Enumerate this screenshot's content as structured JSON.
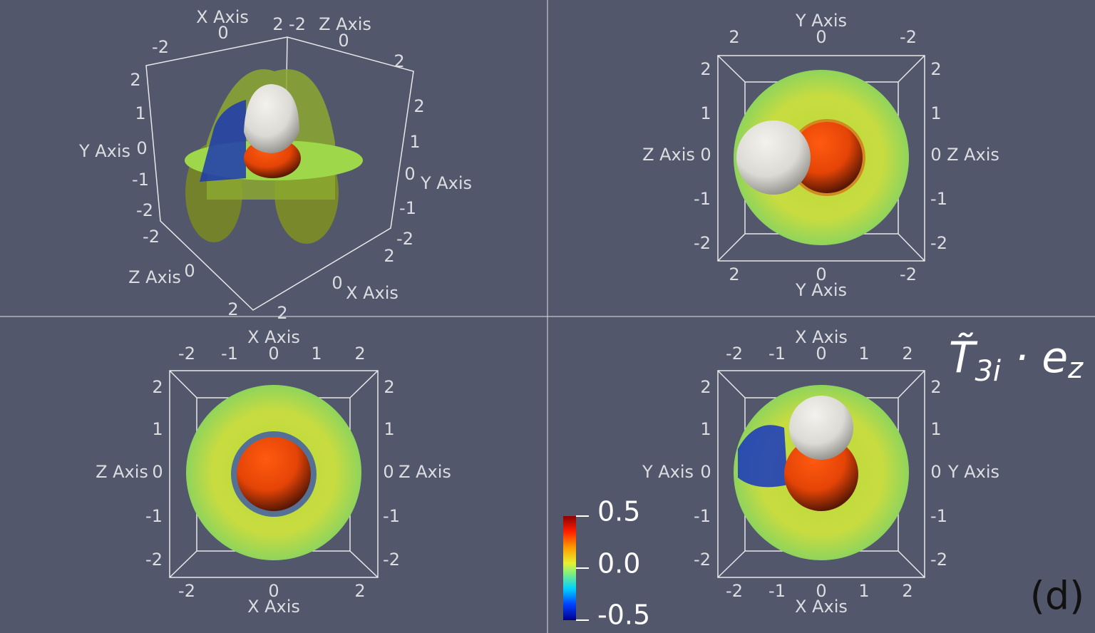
{
  "panels": [
    {
      "texts": [
        "X Axis",
        "0",
        "-2",
        "2",
        "-2",
        "Z Axis",
        "0",
        "2",
        "2",
        "1",
        "0",
        "Y Axis",
        "-1",
        "-2",
        "2",
        "0",
        "X Axis",
        "2",
        "1",
        "Y Axis",
        "0",
        "-1",
        "-2",
        "-2",
        "Z Axis",
        "0",
        "2",
        "2"
      ]
    },
    {
      "texts": [
        "Y Axis",
        "2",
        "0",
        "-2",
        "2",
        "1",
        "Z Axis",
        "0",
        "-1",
        "-2",
        "2",
        "1",
        "0",
        "Z Axis",
        "-1",
        "-2",
        "2",
        "0",
        "-2",
        "Y Axis"
      ]
    },
    {
      "texts": [
        "X Axis",
        "-2",
        "-1",
        "0",
        "1",
        "2",
        "2",
        "1",
        "Z Axis",
        "0",
        "-1",
        "-2",
        "2",
        "1",
        "0",
        "Z Axis",
        "-1",
        "-2",
        "-2",
        "0",
        "2",
        "X Axis"
      ]
    },
    {
      "texts": [
        "X Axis",
        "-2",
        "-1",
        "0",
        "1",
        "2",
        "2",
        "1",
        "Y Axis",
        "0",
        "-1",
        "-2",
        "2",
        "1",
        "0",
        "Y Axis",
        "-1",
        "-2",
        "-2",
        "-1",
        "0",
        "1",
        "2",
        "X Axis"
      ]
    }
  ],
  "colorbar": {
    "labels": [
      "0.5",
      "0.0",
      "-0.5"
    ]
  },
  "title": [
    "T̃",
    "3i",
    " · e",
    "z"
  ],
  "label": "(d)"
}
